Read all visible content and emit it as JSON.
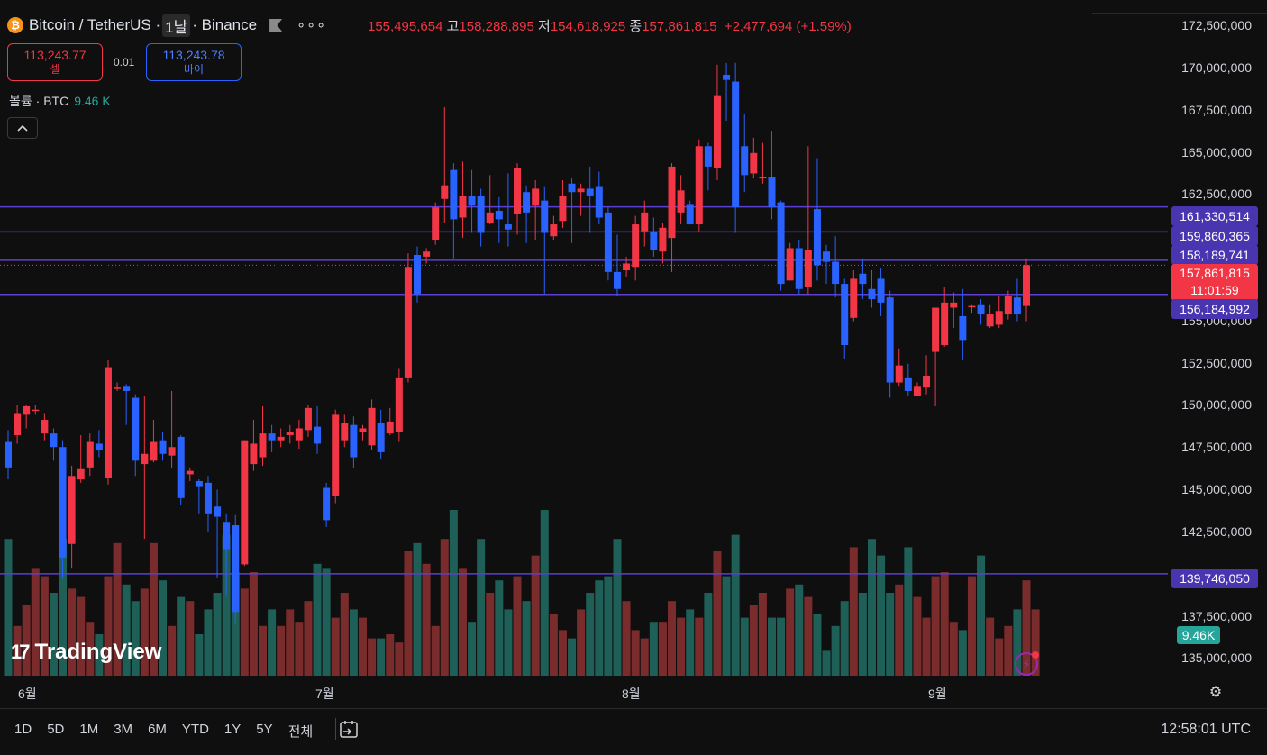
{
  "header": {
    "coin_icon": "bitcoin-icon",
    "symbol": "Bitcoin / TetherUS ·",
    "interval": "1날",
    "exchange": "· Binance",
    "more": "∘∘∘"
  },
  "ohlc": {
    "open_value": "155,495,654",
    "high_label": "고",
    "high_value": "158,288,895",
    "low_label": "저",
    "low_value": "154,618,925",
    "close_label": "종",
    "close_value": "157,861,815",
    "change": "+2,477,694 (+1.59%)"
  },
  "trade": {
    "sell_price": "113,243.77",
    "sell_label": "셀",
    "spread": "0.01",
    "buy_price": "113,243.78",
    "buy_label": "바이"
  },
  "volume_legend": {
    "label": "볼륨 · BTC",
    "value": "9.46 K"
  },
  "collapse_icon": "chevron-up-icon",
  "logo_text": "TradingView",
  "price_axis": [
    "172,500,000",
    "170,000,000",
    "167,500,000",
    "165,000,000",
    "162,500,000",
    "155,000,000",
    "152,500,000",
    "150,000,000",
    "147,500,000",
    "145,000,000",
    "142,500,000",
    "137,500,000",
    "135,000,000"
  ],
  "price_tags": {
    "line1": "161,330,514",
    "line2": "159,860,365",
    "line3": "158,189,741",
    "current_price": "157,861,815",
    "countdown": "11:01:59",
    "line4": "156,184,992",
    "line5": "139,746,050",
    "volume": "9.46K"
  },
  "time_axis": [
    "6월",
    "7월",
    "8월",
    "9월"
  ],
  "ranges": [
    "1D",
    "5D",
    "1M",
    "3M",
    "6M",
    "YTD",
    "1Y",
    "5Y",
    "전체"
  ],
  "clock": "12:58:01 UTC",
  "colors": {
    "up": "#f23645",
    "down": "#2962ff",
    "vol_up": "#7a2c2c",
    "vol_down": "#1e5f57",
    "hline": "#5b3fd4"
  },
  "chart_data": {
    "type": "candlestick",
    "ylim": [
      133750000,
      173500000
    ],
    "hlines": [
      161330514,
      159860365,
      158189741,
      156184992,
      139746050
    ],
    "candles": [
      [
        147.5,
        146.0,
        148.2,
        145.3
      ],
      [
        147.9,
        149.2,
        149.7,
        147.4
      ],
      [
        149.1,
        149.6,
        149.7,
        148.3
      ],
      [
        149.4,
        149.4,
        149.7,
        149.1
      ],
      [
        148.0,
        148.8,
        149.2,
        147.6
      ],
      [
        148.0,
        147.2,
        148.3,
        146.4
      ],
      [
        147.2,
        140.7,
        147.6,
        139.5
      ],
      [
        141.5,
        145.5,
        146.1,
        140.1
      ],
      [
        145.3,
        145.9,
        147.9,
        145.1
      ],
      [
        146.0,
        147.5,
        148.0,
        145.5
      ],
      [
        147.4,
        147.0,
        148.2,
        146.6
      ],
      [
        145.4,
        151.9,
        152.3,
        145.0
      ],
      [
        150.7,
        150.7,
        151.0,
        150.5
      ],
      [
        150.8,
        150.5,
        150.9,
        148.5
      ],
      [
        150.1,
        146.4,
        150.3,
        145.5
      ],
      [
        146.2,
        146.8,
        150.2,
        141.8
      ],
      [
        146.4,
        147.5,
        148.8,
        146.3
      ],
      [
        147.6,
        146.8,
        148.1,
        146.4
      ],
      [
        146.7,
        147.2,
        150.5,
        146.0
      ],
      [
        147.8,
        144.2,
        147.9,
        143.8
      ],
      [
        145.6,
        145.8,
        146.0,
        145.2
      ],
      [
        145.2,
        144.9,
        145.3,
        143.3
      ],
      [
        145.1,
        143.3,
        145.5,
        142.2
      ],
      [
        143.7,
        143.1,
        144.7,
        139.5
      ],
      [
        142.8,
        141.2,
        143.3,
        138.5
      ],
      [
        142.6,
        137.5,
        143.2,
        136.8
      ],
      [
        140.3,
        147.6,
        147.6,
        140.2
      ],
      [
        146.2,
        147.4,
        148.8,
        145.8
      ],
      [
        146.6,
        148.0,
        149.6,
        146.1
      ],
      [
        148.0,
        147.6,
        148.5,
        146.9
      ],
      [
        147.6,
        147.8,
        148.3,
        147.2
      ],
      [
        147.9,
        148.1,
        148.5,
        147.4
      ],
      [
        147.6,
        148.3,
        148.8,
        147.1
      ],
      [
        148.2,
        149.5,
        149.7,
        147.8
      ],
      [
        148.4,
        147.4,
        149.6,
        146.8
      ],
      [
        144.8,
        142.9,
        145.1,
        142.5
      ],
      [
        144.3,
        149.1,
        149.4,
        143.9
      ],
      [
        147.6,
        148.6,
        149.1,
        147.2
      ],
      [
        148.5,
        146.6,
        149.0,
        146.0
      ],
      [
        148.1,
        148.3,
        148.5,
        147.6
      ],
      [
        147.3,
        149.5,
        150.0,
        147.0
      ],
      [
        148.6,
        146.9,
        149.4,
        146.5
      ],
      [
        148.0,
        148.7,
        149.5,
        147.9
      ],
      [
        148.1,
        151.3,
        151.8,
        147.5
      ],
      [
        151.3,
        157.8,
        158.6,
        151.0
      ],
      [
        158.5,
        156.2,
        159.0,
        155.7
      ],
      [
        158.4,
        158.7,
        158.9,
        158.0
      ],
      [
        159.4,
        161.3,
        161.6,
        159.1
      ],
      [
        161.8,
        162.6,
        167.2,
        160.4
      ],
      [
        163.5,
        160.6,
        163.9,
        158.3
      ],
      [
        160.7,
        162.0,
        164.0,
        159.5
      ],
      [
        162.0,
        161.4,
        163.5,
        159.8
      ],
      [
        162.0,
        159.8,
        162.4,
        159.0
      ],
      [
        160.4,
        161.0,
        163.2,
        160.3
      ],
      [
        161.1,
        160.6,
        161.9,
        159.2
      ],
      [
        160.3,
        160.0,
        163.3,
        159.0
      ],
      [
        160.9,
        163.6,
        163.9,
        159.7
      ],
      [
        162.2,
        161.0,
        162.6,
        159.2
      ],
      [
        161.4,
        162.4,
        162.9,
        159.4
      ],
      [
        161.7,
        159.8,
        162.5,
        156.2
      ],
      [
        159.6,
        160.3,
        160.8,
        159.4
      ],
      [
        160.5,
        162.0,
        162.9,
        160.1
      ],
      [
        162.7,
        162.2,
        163.0,
        159.2
      ],
      [
        162.2,
        162.4,
        162.7,
        160.8
      ],
      [
        162.4,
        162.0,
        163.7,
        159.8
      ],
      [
        162.5,
        160.7,
        163.4,
        160.3
      ],
      [
        161.0,
        157.5,
        161.3,
        157.0
      ],
      [
        157.5,
        156.5,
        159.7,
        156.1
      ],
      [
        157.6,
        158.0,
        158.4,
        157.2
      ],
      [
        157.8,
        160.3,
        160.8,
        157.0
      ],
      [
        159.9,
        161.0,
        161.7,
        159.0
      ],
      [
        159.9,
        158.8,
        160.7,
        158.4
      ],
      [
        158.7,
        160.1,
        160.4,
        158.0
      ],
      [
        159.5,
        163.7,
        163.9,
        157.5
      ],
      [
        161.0,
        162.3,
        163.2,
        160.3
      ],
      [
        161.5,
        160.3,
        161.7,
        160.3
      ],
      [
        160.3,
        164.9,
        165.3,
        159.9
      ],
      [
        164.9,
        163.7,
        165.1,
        162.3
      ],
      [
        163.6,
        167.9,
        169.7,
        162.9
      ],
      [
        169.1,
        168.8,
        169.8,
        166.4
      ],
      [
        168.7,
        161.3,
        169.8,
        159.8
      ],
      [
        164.9,
        163.2,
        166.8,
        162.2
      ],
      [
        163.3,
        164.5,
        165.4,
        163.0
      ],
      [
        163.0,
        163.1,
        165.1,
        162.7
      ],
      [
        163.1,
        161.3,
        165.8,
        160.6
      ],
      [
        161.6,
        156.8,
        161.7,
        156.4
      ],
      [
        157.0,
        158.9,
        159.2,
        157.0
      ],
      [
        158.9,
        156.5,
        159.4,
        156.2
      ],
      [
        156.6,
        158.8,
        164.9,
        156.2
      ],
      [
        161.2,
        157.9,
        164.2,
        157.0
      ],
      [
        158.7,
        158.1,
        159.1,
        156.8
      ],
      [
        158.1,
        156.8,
        159.6,
        156.0
      ],
      [
        156.8,
        153.2,
        157.1,
        152.4
      ],
      [
        154.8,
        157.1,
        157.6,
        154.6
      ],
      [
        157.4,
        156.8,
        158.3,
        155.9
      ],
      [
        156.5,
        155.9,
        157.6,
        155.4
      ],
      [
        157.1,
        155.7,
        157.7,
        154.9
      ],
      [
        156.0,
        151.0,
        156.4,
        150.1
      ],
      [
        151.0,
        152.0,
        153.0,
        150.8
      ],
      [
        151.3,
        150.5,
        152.1,
        150.2
      ],
      [
        150.2,
        150.8,
        151.0,
        150.4
      ],
      [
        150.7,
        151.4,
        152.6,
        150.3
      ],
      [
        152.8,
        155.4,
        155.4,
        149.6
      ],
      [
        153.2,
        155.7,
        156.6,
        153.1
      ],
      [
        155.4,
        155.7,
        156.3,
        154.2
      ],
      [
        154.9,
        153.5,
        156.5,
        152.3
      ],
      [
        155.5,
        155.5,
        155.6,
        155.1
      ],
      [
        155.6,
        155.0,
        155.9,
        154.4
      ],
      [
        154.3,
        155.0,
        155.6,
        154.2
      ],
      [
        154.4,
        155.2,
        156.1,
        154.2
      ],
      [
        155.0,
        156.1,
        156.4,
        154.7
      ],
      [
        156.0,
        155.0,
        157.1,
        154.6
      ],
      [
        155.5,
        157.9,
        158.3,
        154.6
      ]
    ],
    "volumes": [
      33,
      12,
      17,
      26,
      24,
      20,
      33,
      21,
      19,
      13,
      10,
      24,
      32,
      22,
      18,
      21,
      32,
      23,
      12,
      19,
      18,
      10,
      16,
      20,
      34,
      25,
      21,
      25,
      12,
      16,
      12,
      16,
      13,
      18,
      27,
      26,
      14,
      20,
      16,
      14,
      9,
      9,
      10,
      8,
      30,
      32,
      27,
      12,
      33,
      40,
      26,
      13,
      33,
      20,
      23,
      16,
      24,
      18,
      29,
      40,
      15,
      11,
      9,
      16,
      20,
      23,
      24,
      33,
      18,
      11,
      9,
      13,
      13,
      18,
      14,
      16,
      14,
      20,
      30,
      24,
      34,
      14,
      17,
      20,
      14,
      14,
      21,
      22,
      19,
      15,
      6,
      12,
      18,
      31,
      20,
      33,
      29,
      20,
      22,
      31,
      19,
      14,
      24,
      25,
      13,
      11,
      24,
      29,
      14,
      9,
      12,
      16,
      23,
      16
    ]
  }
}
